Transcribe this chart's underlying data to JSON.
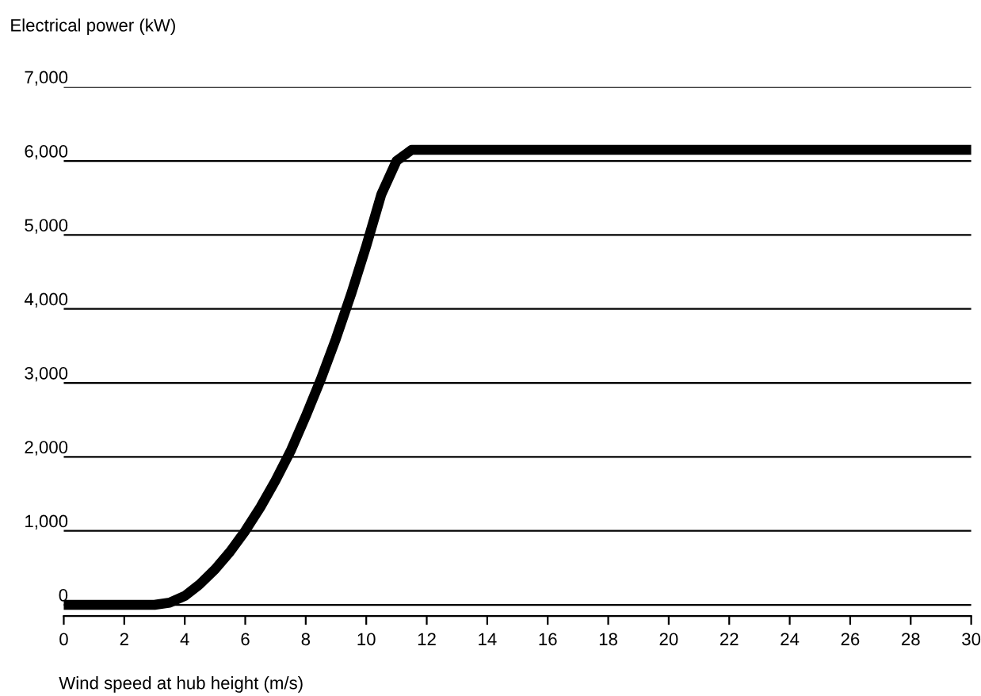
{
  "chart_data": {
    "type": "line",
    "xlabel": "Wind speed at hub height (m/s)",
    "ylabel": "Electrical power (kW)",
    "x": [
      0,
      1,
      2,
      3,
      3.5,
      4,
      4.5,
      5,
      5.5,
      6,
      6.5,
      7,
      7.5,
      8,
      8.5,
      9,
      9.5,
      10,
      10.5,
      11,
      11.5,
      12,
      15,
      20,
      25,
      30
    ],
    "series": [
      {
        "color": "#000000",
        "values": [
          0,
          0,
          0,
          0,
          30,
          120,
          280,
          480,
          720,
          1000,
          1320,
          1680,
          2080,
          2550,
          3050,
          3600,
          4200,
          4850,
          5550,
          6000,
          6150,
          6150,
          6150,
          6150,
          6150,
          6150
        ]
      }
    ],
    "xlim": [
      0,
      30
    ],
    "xticks": [
      0,
      2,
      4,
      6,
      8,
      10,
      12,
      14,
      16,
      18,
      20,
      22,
      24,
      26,
      28,
      30
    ],
    "ylim": [
      -150,
      7000
    ],
    "yticks": [
      0,
      {
        "value": 1000,
        "label": "1,000"
      },
      {
        "value": 2000,
        "label": "2,000"
      },
      {
        "value": 3000,
        "label": "3,000"
      },
      {
        "value": 4000,
        "label": "4,000"
      },
      {
        "value": 5000,
        "label": "5,000"
      },
      {
        "value": 6000,
        "label": "6,000"
      },
      {
        "value": 7000,
        "label": "7,000"
      }
    ],
    "grid": "y",
    "marker": "none",
    "line_style": "solid",
    "legend": false
  }
}
